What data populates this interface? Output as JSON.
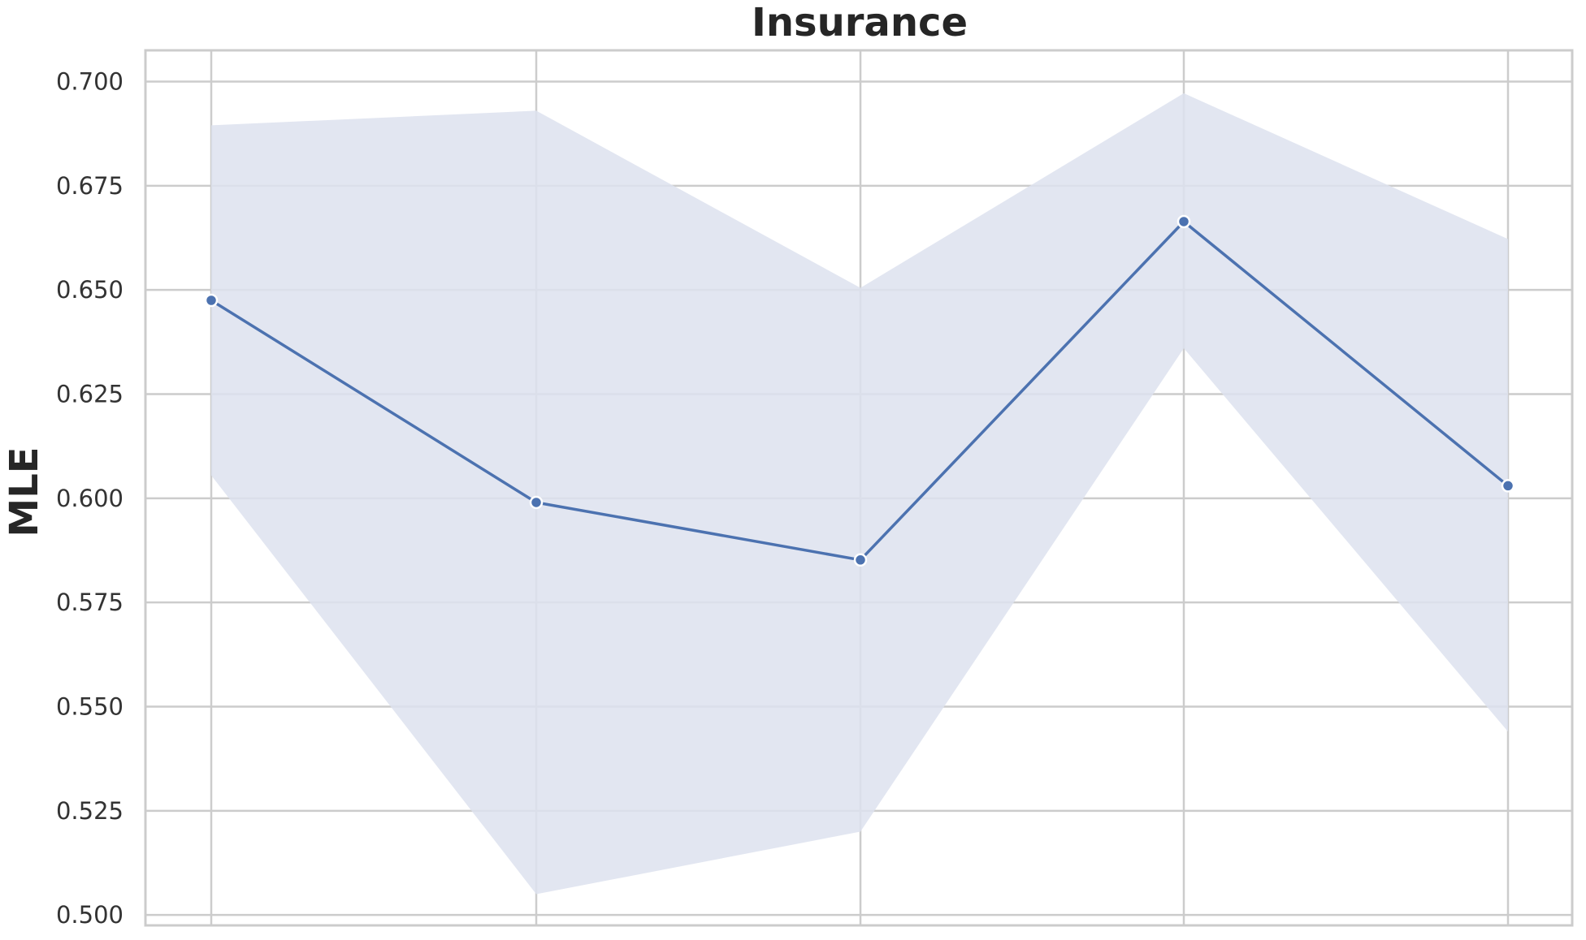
{
  "chart_data": {
    "type": "line",
    "title": "Insurance",
    "xlabel": "",
    "ylabel": "MLE",
    "x": [
      1,
      2,
      3,
      4,
      5
    ],
    "x_tick_labels": [
      "",
      "",
      "",
      "",
      ""
    ],
    "ylim": [
      0.4975,
      0.7075
    ],
    "y_ticks": [
      0.5,
      0.525,
      0.55,
      0.575,
      0.6,
      0.625,
      0.65,
      0.675,
      0.7
    ],
    "y_tick_labels": [
      "0.500",
      "0.525",
      "0.550",
      "0.575",
      "0.600",
      "0.625",
      "0.650",
      "0.675",
      "0.700"
    ],
    "grid": true,
    "series": [
      {
        "values": [
          0.6475,
          0.599,
          0.5852,
          0.6664,
          0.603
        ],
        "ci_lower": [
          0.6055,
          0.505,
          0.52,
          0.636,
          0.544
        ],
        "ci_upper": [
          0.6895,
          0.693,
          0.6505,
          0.6972,
          0.6622
        ],
        "color": "#4c72b0",
        "band_color": "#dde2ee"
      }
    ],
    "colors": {
      "background": "#ffffff",
      "grid": "#cccccc",
      "frame": "#cccccc"
    }
  }
}
